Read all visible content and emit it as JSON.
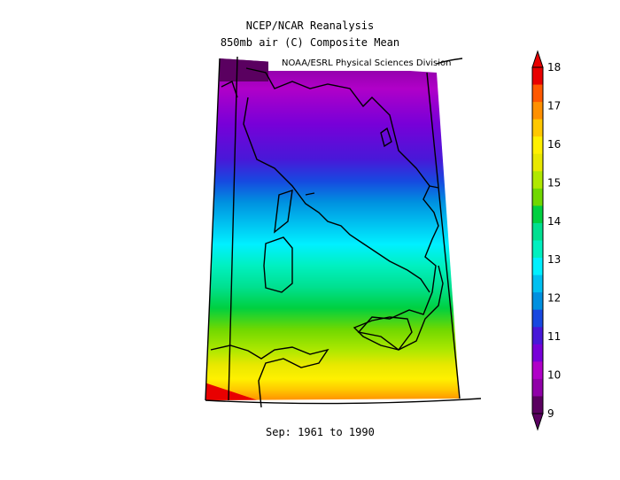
{
  "title": {
    "line1": "NCEP/NCAR Reanalysis",
    "line2": "850mb air (C) Composite Mean"
  },
  "credit": "NOAA/ESRL Physical Sciences Division",
  "footer": "Sep: 1961 to 1990",
  "colorbar": {
    "ticks": [
      "18",
      "17",
      "16",
      "15",
      "14",
      "13",
      "12",
      "11",
      "10",
      "9"
    ],
    "colors": [
      "#5a0060",
      "#9000a8",
      "#b000c8",
      "#7800d8",
      "#4818d8",
      "#1848e0",
      "#0090e0",
      "#00c0f0",
      "#00f0ff",
      "#00f0c0",
      "#00e090",
      "#00d040",
      "#70d800",
      "#b0e800",
      "#e8e800",
      "#fff000",
      "#ffc800",
      "#ff9000",
      "#ff5800",
      "#e80000"
    ]
  },
  "map": {
    "variable": "850mb air temperature",
    "units": "C",
    "region": "Italy",
    "min_level": 9,
    "max_level": 18
  }
}
